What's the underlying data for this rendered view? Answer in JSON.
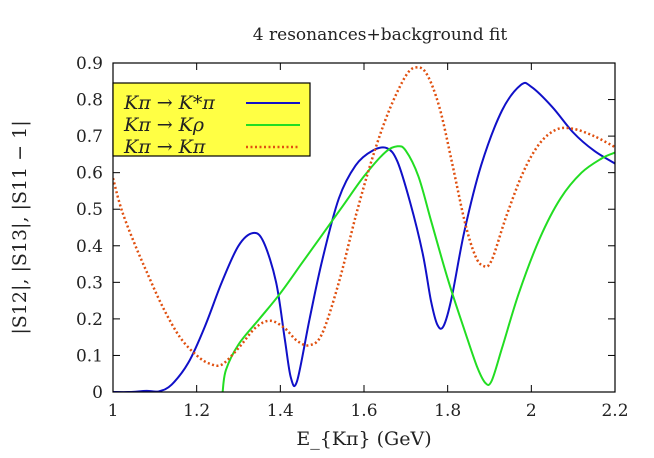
{
  "chart_data": {
    "type": "line",
    "title": "4 resonances+background fit",
    "xlabel": "E_{Kπ} (GeV)",
    "ylabel": "|S12|, |S13|, |S11 − 1|",
    "xlim": [
      1.0,
      2.2
    ],
    "ylim": [
      0.0,
      0.9
    ],
    "xticks": [
      "1",
      "1.2",
      "1.4",
      "1.6",
      "1.8",
      "2",
      "2.2"
    ],
    "yticks": [
      "0",
      "0.1",
      "0.2",
      "0.3",
      "0.4",
      "0.5",
      "0.6",
      "0.7",
      "0.8",
      "0.9"
    ],
    "grid": false,
    "legend_position": "top-left",
    "legend_background": "#ffff44",
    "series": [
      {
        "name": "Kπ → K*π",
        "color": "#1010c8",
        "style": "solid",
        "points": [
          [
            1.0,
            0.0
          ],
          [
            1.04,
            0.0
          ],
          [
            1.08,
            0.003
          ],
          [
            1.11,
            0.002
          ],
          [
            1.14,
            0.02
          ],
          [
            1.18,
            0.08
          ],
          [
            1.22,
            0.18
          ],
          [
            1.26,
            0.3
          ],
          [
            1.3,
            0.4
          ],
          [
            1.335,
            0.435
          ],
          [
            1.36,
            0.41
          ],
          [
            1.39,
            0.3
          ],
          [
            1.41,
            0.15
          ],
          [
            1.425,
            0.04
          ],
          [
            1.44,
            0.03
          ],
          [
            1.47,
            0.2
          ],
          [
            1.5,
            0.36
          ],
          [
            1.54,
            0.53
          ],
          [
            1.58,
            0.62
          ],
          [
            1.62,
            0.66
          ],
          [
            1.655,
            0.667
          ],
          [
            1.68,
            0.63
          ],
          [
            1.71,
            0.52
          ],
          [
            1.74,
            0.38
          ],
          [
            1.76,
            0.25
          ],
          [
            1.775,
            0.185
          ],
          [
            1.79,
            0.18
          ],
          [
            1.81,
            0.26
          ],
          [
            1.84,
            0.44
          ],
          [
            1.88,
            0.62
          ],
          [
            1.93,
            0.77
          ],
          [
            1.975,
            0.84
          ],
          [
            2.0,
            0.835
          ],
          [
            2.05,
            0.78
          ],
          [
            2.1,
            0.71
          ],
          [
            2.15,
            0.66
          ],
          [
            2.2,
            0.625
          ]
        ]
      },
      {
        "name": "Kπ → Kρ",
        "color": "#22dd22",
        "style": "solid",
        "points": [
          [
            1.262,
            0.0
          ],
          [
            1.27,
            0.06
          ],
          [
            1.3,
            0.13
          ],
          [
            1.35,
            0.2
          ],
          [
            1.4,
            0.27
          ],
          [
            1.45,
            0.35
          ],
          [
            1.5,
            0.43
          ],
          [
            1.55,
            0.51
          ],
          [
            1.6,
            0.59
          ],
          [
            1.65,
            0.655
          ],
          [
            1.68,
            0.672
          ],
          [
            1.7,
            0.66
          ],
          [
            1.73,
            0.59
          ],
          [
            1.76,
            0.47
          ],
          [
            1.8,
            0.31
          ],
          [
            1.84,
            0.17
          ],
          [
            1.87,
            0.07
          ],
          [
            1.89,
            0.025
          ],
          [
            1.905,
            0.03
          ],
          [
            1.93,
            0.12
          ],
          [
            1.97,
            0.27
          ],
          [
            2.02,
            0.42
          ],
          [
            2.07,
            0.53
          ],
          [
            2.12,
            0.6
          ],
          [
            2.17,
            0.64
          ],
          [
            2.2,
            0.655
          ]
        ]
      },
      {
        "name": "Kπ → Kπ",
        "color": "#e05010",
        "style": "dotted",
        "points": [
          [
            1.0,
            0.585
          ],
          [
            1.02,
            0.5
          ],
          [
            1.05,
            0.41
          ],
          [
            1.08,
            0.33
          ],
          [
            1.12,
            0.23
          ],
          [
            1.16,
            0.15
          ],
          [
            1.2,
            0.1
          ],
          [
            1.23,
            0.078
          ],
          [
            1.26,
            0.075
          ],
          [
            1.3,
            0.12
          ],
          [
            1.34,
            0.175
          ],
          [
            1.375,
            0.195
          ],
          [
            1.41,
            0.175
          ],
          [
            1.44,
            0.14
          ],
          [
            1.47,
            0.128
          ],
          [
            1.5,
            0.16
          ],
          [
            1.54,
            0.3
          ],
          [
            1.58,
            0.48
          ],
          [
            1.62,
            0.64
          ],
          [
            1.66,
            0.77
          ],
          [
            1.7,
            0.865
          ],
          [
            1.725,
            0.888
          ],
          [
            1.75,
            0.87
          ],
          [
            1.78,
            0.78
          ],
          [
            1.81,
            0.63
          ],
          [
            1.84,
            0.47
          ],
          [
            1.865,
            0.375
          ],
          [
            1.885,
            0.345
          ],
          [
            1.905,
            0.36
          ],
          [
            1.94,
            0.48
          ],
          [
            1.98,
            0.6
          ],
          [
            2.02,
            0.68
          ],
          [
            2.06,
            0.718
          ],
          [
            2.1,
            0.72
          ],
          [
            2.15,
            0.7
          ],
          [
            2.2,
            0.67
          ]
        ]
      }
    ]
  }
}
